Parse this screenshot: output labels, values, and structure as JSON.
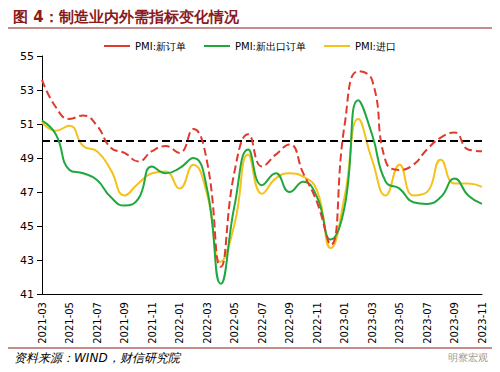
{
  "chart_data": {
    "type": "line",
    "title": "图 4：制造业内外需指标变化情况",
    "source": "资料来源：WIND，财信研究院",
    "watermark": "明察宏观",
    "categories": [
      "2021-03",
      null,
      "2021-05",
      null,
      "2021-07",
      null,
      "2021-09",
      null,
      "2021-11",
      null,
      "2022-01",
      null,
      "2022-03",
      null,
      "2022-05",
      null,
      "2022-07",
      null,
      "2022-09",
      null,
      "2022-11",
      null,
      "2023-01",
      null,
      "2023-03",
      null,
      "2023-05",
      null,
      "2023-07",
      null,
      "2023-09",
      null,
      "2023-11"
    ],
    "series": [
      {
        "name": "PMI:新订单",
        "color": "#e03a2f",
        "line_style": "dashed",
        "values": [
          53.6,
          52.0,
          51.3,
          51.5,
          50.9,
          49.6,
          49.3,
          48.8,
          49.4,
          49.7,
          49.3,
          50.7,
          48.8,
          42.6,
          48.2,
          50.4,
          48.5,
          49.2,
          49.8,
          48.1,
          46.4,
          43.9,
          50.9,
          54.1,
          53.6,
          48.8,
          48.3,
          48.6,
          49.5,
          50.2,
          50.5,
          49.5,
          49.4
        ]
      },
      {
        "name": "PMI:新出口订单",
        "color": "#1fa83e",
        "line_style": "solid",
        "values": [
          51.2,
          50.4,
          48.3,
          48.1,
          47.7,
          46.7,
          46.2,
          46.6,
          48.5,
          48.1,
          48.4,
          49.0,
          47.2,
          41.6,
          46.2,
          49.5,
          47.4,
          48.1,
          47.0,
          47.6,
          46.7,
          44.2,
          46.1,
          52.4,
          50.4,
          47.6,
          47.2,
          46.4,
          46.3,
          46.7,
          47.8,
          46.8,
          46.3
        ]
      },
      {
        "name": "PMI:进口",
        "color": "#f5c21b",
        "line_style": "solid",
        "values": [
          51.1,
          50.6,
          50.9,
          49.7,
          49.4,
          48.3,
          46.8,
          47.5,
          48.1,
          48.2,
          47.2,
          48.6,
          46.9,
          42.9,
          45.1,
          49.2,
          46.9,
          47.8,
          48.1,
          47.9,
          47.1,
          43.7,
          46.7,
          51.3,
          48.9,
          46.8,
          48.6,
          46.8,
          47.0,
          48.9,
          47.5,
          47.5,
          47.3
        ]
      }
    ],
    "hline": 50,
    "ylim": [
      41,
      55
    ],
    "yticks": [
      41,
      43,
      45,
      47,
      49,
      51,
      53,
      55
    ],
    "grid": false,
    "legend": "top"
  }
}
